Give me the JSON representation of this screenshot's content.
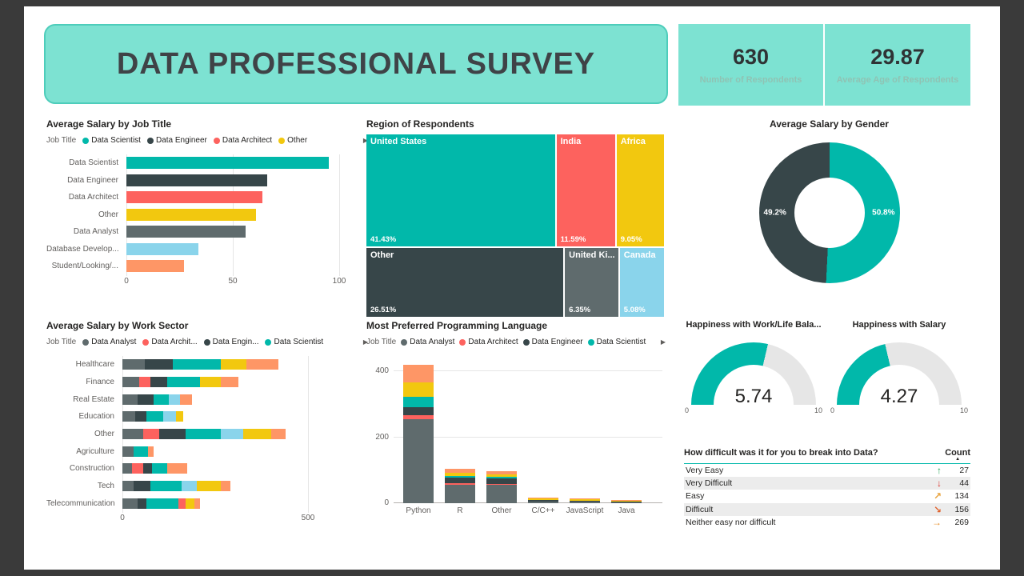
{
  "header": {
    "banner_title": "DATA PROFESSIONAL SURVEY",
    "cards": [
      {
        "value": "630",
        "label": "Number of Respondents"
      },
      {
        "value": "29.87",
        "label": "Average Age of Respondents"
      }
    ]
  },
  "palette": {
    "teal": "#01b8aa",
    "dark": "#374649",
    "coral": "#fd625e",
    "yellow": "#f2c80f",
    "gray": "#5f6b6d",
    "lightblue": "#8ad4eb",
    "orange": "#fe9666"
  },
  "colors": {
    "frame_bg": "#3a3a3a",
    "canvas_bg": "#ffffff",
    "banner_bg": "#7de2d2",
    "banner_border": "#4ecdbb",
    "card_label": "#8fc3b4",
    "gauge_track": "#e6e6e6",
    "table_stripe": "#ececec",
    "header_rule": "#01b8aa"
  },
  "icons": {
    "chevron_right": "▶",
    "sort_asc": "▲",
    "arrow-up": "↑",
    "arrow-down": "↓",
    "arrow-up-right": "↗",
    "arrow-down-right": "↘",
    "arrow-right": "→"
  },
  "chart_data": {
    "salary_by_job": {
      "type": "bar",
      "title": "Average Salary by Job Title",
      "legend": {
        "title": "Job Title",
        "items": [
          {
            "name": "Data Scientist",
            "color": "teal"
          },
          {
            "name": "Data Engineer",
            "color": "dark"
          },
          {
            "name": "Data Architect",
            "color": "coral"
          },
          {
            "name": "Other",
            "color": "yellow"
          }
        ]
      },
      "xlim": [
        0,
        100
      ],
      "ticks": [
        0,
        50,
        100
      ],
      "rows": [
        {
          "label": "Data Scientist",
          "value": 95,
          "color": "teal"
        },
        {
          "label": "Data Engineer",
          "value": 66,
          "color": "dark"
        },
        {
          "label": "Data Architect",
          "value": 64,
          "color": "coral"
        },
        {
          "label": "Other",
          "value": 61,
          "color": "yellow"
        },
        {
          "label": "Data Analyst",
          "value": 56,
          "color": "gray"
        },
        {
          "label": "Database Develop...",
          "value": 34,
          "color": "lightblue"
        },
        {
          "label": "Student/Looking/...",
          "value": 27,
          "color": "orange"
        }
      ]
    },
    "region": {
      "type": "treemap",
      "title": "Region of Respondents",
      "rows": [
        {
          "cells": [
            {
              "label": "United States",
              "pct": "41.43%",
              "value": 41.43,
              "color": "teal"
            },
            {
              "label": "India",
              "pct": "11.59%",
              "value": 11.59,
              "color": "coral"
            },
            {
              "label": "Africa",
              "pct": "9.05%",
              "value": 9.05,
              "color": "yellow"
            }
          ]
        },
        {
          "cells": [
            {
              "label": "Other",
              "pct": "26.51%",
              "value": 26.51,
              "color": "dark"
            },
            {
              "label": "United Ki...",
              "pct": "6.35%",
              "value": 6.35,
              "color": "gray"
            },
            {
              "label": "Canada",
              "pct": "5.08%",
              "value": 5.08,
              "color": "lightblue"
            }
          ]
        }
      ]
    },
    "gender": {
      "type": "pie",
      "title": "Average Salary by Gender",
      "slices": [
        {
          "label": "50.8%",
          "value": 50.8,
          "color": "teal",
          "side": "right"
        },
        {
          "label": "49.2%",
          "value": 49.2,
          "color": "dark",
          "side": "left"
        }
      ]
    },
    "salary_by_sector": {
      "type": "stacked-bar",
      "title": "Average Salary by Work Sector",
      "legend": {
        "title": "Job Title",
        "items": [
          {
            "name": "Data Analyst",
            "color": "gray"
          },
          {
            "name": "Data Archit...",
            "color": "coral"
          },
          {
            "name": "Data Engin...",
            "color": "dark"
          },
          {
            "name": "Data Scientist",
            "color": "teal"
          }
        ]
      },
      "xlim": [
        0,
        500
      ],
      "ticks": [
        0,
        500
      ],
      "rows": [
        {
          "label": "Healthcare",
          "segments": [
            {
              "color": "gray",
              "value": 60
            },
            {
              "color": "dark",
              "value": 75
            },
            {
              "color": "teal",
              "value": 130
            },
            {
              "color": "yellow",
              "value": 70
            },
            {
              "color": "orange",
              "value": 85
            }
          ]
        },
        {
          "label": "Finance",
          "segments": [
            {
              "color": "gray",
              "value": 45
            },
            {
              "color": "coral",
              "value": 30
            },
            {
              "color": "dark",
              "value": 45
            },
            {
              "color": "teal",
              "value": 90
            },
            {
              "color": "yellow",
              "value": 55
            },
            {
              "color": "orange",
              "value": 48
            }
          ]
        },
        {
          "label": "Real Estate",
          "segments": [
            {
              "color": "gray",
              "value": 40
            },
            {
              "color": "dark",
              "value": 45
            },
            {
              "color": "teal",
              "value": 40
            },
            {
              "color": "lightblue",
              "value": 30
            },
            {
              "color": "orange",
              "value": 33
            }
          ]
        },
        {
          "label": "Education",
          "segments": [
            {
              "color": "gray",
              "value": 35
            },
            {
              "color": "dark",
              "value": 30
            },
            {
              "color": "teal",
              "value": 45
            },
            {
              "color": "lightblue",
              "value": 35
            },
            {
              "color": "yellow",
              "value": 19
            }
          ]
        },
        {
          "label": "Other",
          "segments": [
            {
              "color": "gray",
              "value": 55
            },
            {
              "color": "coral",
              "value": 45
            },
            {
              "color": "dark",
              "value": 70
            },
            {
              "color": "teal",
              "value": 95
            },
            {
              "color": "lightblue",
              "value": 60
            },
            {
              "color": "yellow",
              "value": 75
            },
            {
              "color": "orange",
              "value": 40
            }
          ]
        },
        {
          "label": "Agriculture",
          "segments": [
            {
              "color": "gray",
              "value": 30
            },
            {
              "color": "teal",
              "value": 40
            },
            {
              "color": "orange",
              "value": 15
            }
          ]
        },
        {
          "label": "Construction",
          "segments": [
            {
              "color": "gray",
              "value": 25
            },
            {
              "color": "coral",
              "value": 30
            },
            {
              "color": "dark",
              "value": 25
            },
            {
              "color": "teal",
              "value": 40
            },
            {
              "color": "orange",
              "value": 55
            }
          ]
        },
        {
          "label": "Tech",
          "segments": [
            {
              "color": "gray",
              "value": 30
            },
            {
              "color": "dark",
              "value": 45
            },
            {
              "color": "teal",
              "value": 85
            },
            {
              "color": "lightblue",
              "value": 40
            },
            {
              "color": "yellow",
              "value": 65
            },
            {
              "color": "orange",
              "value": 27
            }
          ]
        },
        {
          "label": "Telecommunication",
          "segments": [
            {
              "color": "gray",
              "value": 40
            },
            {
              "color": "dark",
              "value": 25
            },
            {
              "color": "teal",
              "value": 85
            },
            {
              "color": "coral",
              "value": 20
            },
            {
              "color": "yellow",
              "value": 25
            },
            {
              "color": "orange",
              "value": 15
            }
          ]
        }
      ]
    },
    "language": {
      "type": "stacked-column",
      "title": "Most Preferred Programming Language",
      "legend": {
        "title": "Job Title",
        "items": [
          {
            "name": "Data Analyst",
            "color": "gray"
          },
          {
            "name": "Data Architect",
            "color": "coral"
          },
          {
            "name": "Data Engineer",
            "color": "dark"
          },
          {
            "name": "Data Scientist",
            "color": "teal"
          }
        ]
      },
      "ylim": [
        0,
        440
      ],
      "ticks": [
        0,
        200,
        400
      ],
      "columns": [
        {
          "label": "Python",
          "segments": [
            {
              "color": "gray",
              "value": 255
            },
            {
              "color": "coral",
              "value": 12
            },
            {
              "color": "dark",
              "value": 25
            },
            {
              "color": "teal",
              "value": 30
            },
            {
              "color": "yellow",
              "value": 43
            },
            {
              "color": "orange",
              "value": 55
            }
          ]
        },
        {
          "label": "R",
          "segments": [
            {
              "color": "gray",
              "value": 55
            },
            {
              "color": "coral",
              "value": 5
            },
            {
              "color": "dark",
              "value": 18
            },
            {
              "color": "teal",
              "value": 5
            },
            {
              "color": "yellow",
              "value": 10
            },
            {
              "color": "orange",
              "value": 12
            }
          ]
        },
        {
          "label": "Other",
          "segments": [
            {
              "color": "gray",
              "value": 55
            },
            {
              "color": "coral",
              "value": 4
            },
            {
              "color": "dark",
              "value": 15
            },
            {
              "color": "teal",
              "value": 5
            },
            {
              "color": "yellow",
              "value": 8
            },
            {
              "color": "orange",
              "value": 10
            }
          ]
        },
        {
          "label": "C/C++",
          "segments": [
            {
              "color": "gray",
              "value": 6
            },
            {
              "color": "dark",
              "value": 4
            },
            {
              "color": "yellow",
              "value": 4
            },
            {
              "color": "orange",
              "value": 3
            }
          ]
        },
        {
          "label": "JavaScript",
          "segments": [
            {
              "color": "gray",
              "value": 5
            },
            {
              "color": "dark",
              "value": 3
            },
            {
              "color": "yellow",
              "value": 3
            },
            {
              "color": "orange",
              "value": 3
            }
          ]
        },
        {
          "label": "Java",
          "segments": [
            {
              "color": "gray",
              "value": 3
            },
            {
              "color": "dark",
              "value": 2
            },
            {
              "color": "yellow",
              "value": 2
            },
            {
              "color": "orange",
              "value": 2
            }
          ]
        }
      ]
    },
    "gauges": [
      {
        "type": "gauge",
        "title": "Happiness with Work/Life Bala...",
        "value": 5.74,
        "min": 0,
        "max": 10
      },
      {
        "type": "gauge",
        "title": "Happiness with Salary",
        "value": 4.27,
        "min": 0,
        "max": 10
      }
    ],
    "difficulty_table": {
      "type": "table",
      "title": "How difficult was it for you to break into Data?",
      "count_header": "Count",
      "rows": [
        {
          "label": "Very Easy",
          "icon": "arrow-up",
          "color": "#23a455",
          "value": 27
        },
        {
          "label": "Very Difficult",
          "icon": "arrow-down",
          "color": "#d9342b",
          "value": 44
        },
        {
          "label": "Easy",
          "icon": "arrow-up-right",
          "color": "#e8a33d",
          "value": 134
        },
        {
          "label": "Difficult",
          "icon": "arrow-down-right",
          "color": "#e0642f",
          "value": 156
        },
        {
          "label": "Neither easy nor difficult",
          "icon": "arrow-right",
          "color": "#e8912d",
          "value": 269
        }
      ]
    }
  }
}
